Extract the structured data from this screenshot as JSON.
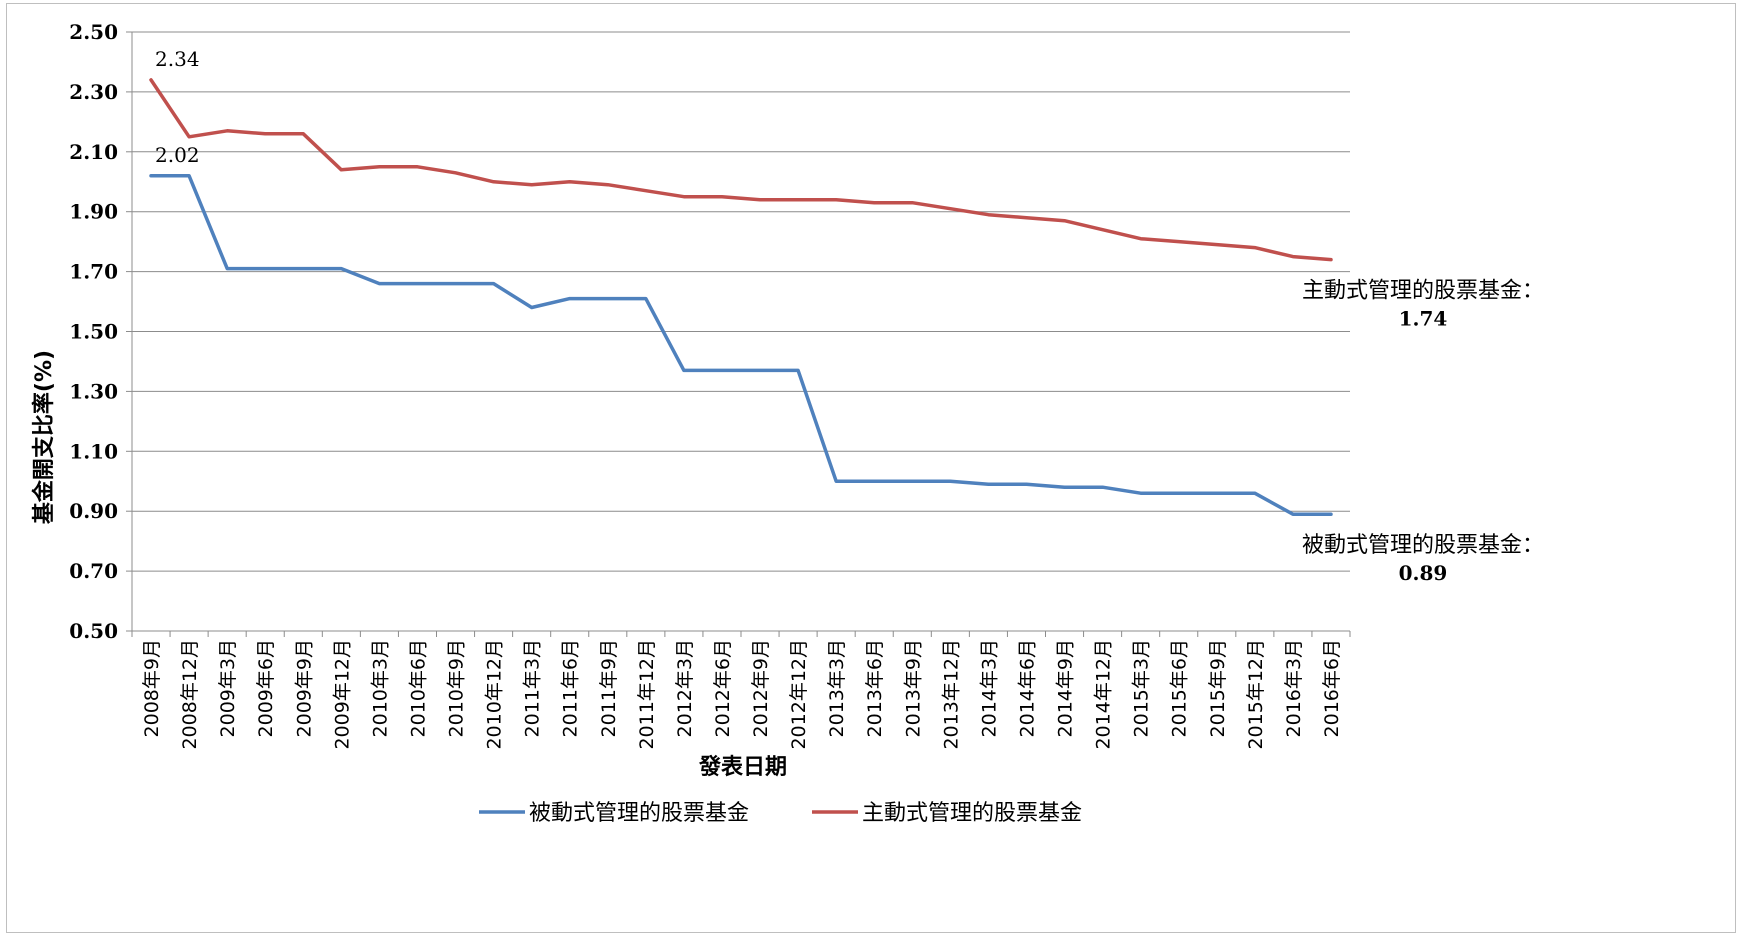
{
  "chart_data": {
    "type": "line",
    "title": "",
    "xlabel": "發表日期",
    "ylabel": "基金開支比率(%)",
    "ylim": [
      0.5,
      2.5
    ],
    "yticks": [
      "2.50",
      "2.30",
      "2.10",
      "1.90",
      "1.70",
      "1.50",
      "1.30",
      "1.10",
      "0.90",
      "0.70",
      "0.50"
    ],
    "grid": true,
    "legend_position": "bottom",
    "categories": [
      "2008年9月",
      "2008年12月",
      "2009年3月",
      "2009年6月",
      "2009年9月",
      "2009年12月",
      "2010年3月",
      "2010年6月",
      "2010年9月",
      "2010年12月",
      "2011年3月",
      "2011年6月",
      "2011年9月",
      "2011年12月",
      "2012年3月",
      "2012年6月",
      "2012年9月",
      "2012年12月",
      "2013年3月",
      "2013年6月",
      "2013年9月",
      "2013年12月",
      "2014年3月",
      "2014年6月",
      "2014年9月",
      "2014年12月",
      "2015年3月",
      "2015年6月",
      "2015年9月",
      "2015年12月",
      "2016年3月",
      "2016年6月"
    ],
    "series": [
      {
        "name": "被動式管理的股票基金",
        "color": "#4f81bd",
        "values": [
          2.02,
          2.02,
          1.71,
          1.71,
          1.71,
          1.71,
          1.66,
          1.66,
          1.66,
          1.66,
          1.58,
          1.61,
          1.61,
          1.61,
          1.37,
          1.37,
          1.37,
          1.37,
          1.0,
          1.0,
          1.0,
          1.0,
          0.99,
          0.99,
          0.98,
          0.98,
          0.96,
          0.96,
          0.96,
          0.96,
          0.89,
          0.89
        ]
      },
      {
        "name": "主動式管理的股票基金",
        "color": "#c0504d",
        "values": [
          2.34,
          2.15,
          2.17,
          2.16,
          2.16,
          2.04,
          2.05,
          2.05,
          2.03,
          2.0,
          1.99,
          2.0,
          1.99,
          1.97,
          1.95,
          1.95,
          1.94,
          1.94,
          1.94,
          1.93,
          1.93,
          1.91,
          1.89,
          1.88,
          1.87,
          1.84,
          1.81,
          1.8,
          1.79,
          1.78,
          1.75,
          1.74
        ]
      }
    ],
    "data_labels": [
      {
        "series": 1,
        "index": 0,
        "text": "2.34"
      },
      {
        "series": 0,
        "index": 0,
        "text": "2.02"
      }
    ],
    "end_annotations": [
      {
        "series": 1,
        "name": "主動式管理的股票基金：",
        "value": "1.74"
      },
      {
        "series": 0,
        "name": "被動式管理的股票基金：",
        "value": "0.89"
      }
    ]
  }
}
